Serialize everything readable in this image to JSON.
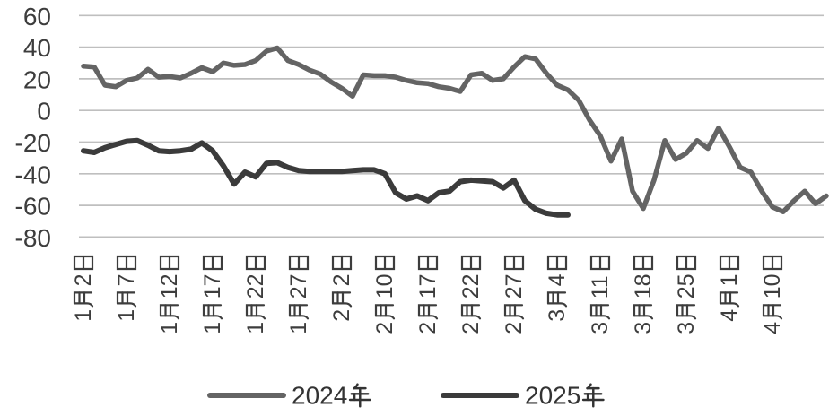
{
  "chart_data": {
    "type": "line",
    "title": "",
    "x_labels": [
      "1月2日",
      "1月7日",
      "1月12日",
      "1月17日",
      "1月22日",
      "1月27日",
      "2月2日",
      "2月10日",
      "2月17日",
      "2月22日",
      "2月27日",
      "3月4日",
      "3月11日",
      "3月18日",
      "3月25日",
      "4月1日",
      "4月10日"
    ],
    "points_per_label_interval": 4,
    "y_ticks": [
      60,
      40,
      20,
      0,
      -20,
      -40,
      -60,
      -80
    ],
    "ylim": [
      -80,
      60
    ],
    "grid": "horizontal-only",
    "legend_position": "bottom-center",
    "background": "#ffffff",
    "gridline_color": "#bfbfbf",
    "axis_text_color": "#3d3d3d",
    "series": [
      {
        "name": "2024年",
        "color": "#646464",
        "values": [
          28,
          27.5,
          16,
          15,
          19,
          20.5,
          26,
          21,
          21.5,
          20.5,
          23.5,
          27,
          24.5,
          30,
          28.5,
          29,
          31.5,
          37.5,
          39.5,
          31.5,
          29,
          25.5,
          23,
          18,
          14,
          9,
          22.5,
          22,
          22,
          21,
          19,
          17.5,
          17,
          15,
          14,
          12,
          22.5,
          23.5,
          19,
          20,
          27.5,
          34,
          32.5,
          23.5,
          16,
          13,
          6.5,
          -6,
          -16,
          -32,
          -18,
          -51,
          -62,
          -44,
          -19,
          -31,
          -27,
          -19,
          -24,
          -11,
          -23,
          -36,
          -39,
          -51,
          -61,
          -64,
          -57,
          -51,
          -59,
          -54
        ]
      },
      {
        "name": "2025年",
        "color": "#3b3b3b",
        "values": [
          -25.5,
          -26.5,
          -23.5,
          -21.5,
          -19.5,
          -19,
          -22,
          -25.5,
          -26,
          -25.5,
          -24.5,
          -20.5,
          -25.5,
          -35,
          -46.5,
          -39,
          -42,
          -33.5,
          -33,
          -36,
          -38,
          -38.5,
          -38.5,
          -38.5,
          -38.5,
          -38,
          -37.5,
          -37.5,
          -40,
          -52,
          -56,
          -54,
          -57,
          -52,
          -51,
          -45,
          -44,
          -44.5,
          -45,
          -49,
          -44,
          -57,
          -62.5,
          -65,
          -66,
          -66
        ]
      }
    ]
  }
}
